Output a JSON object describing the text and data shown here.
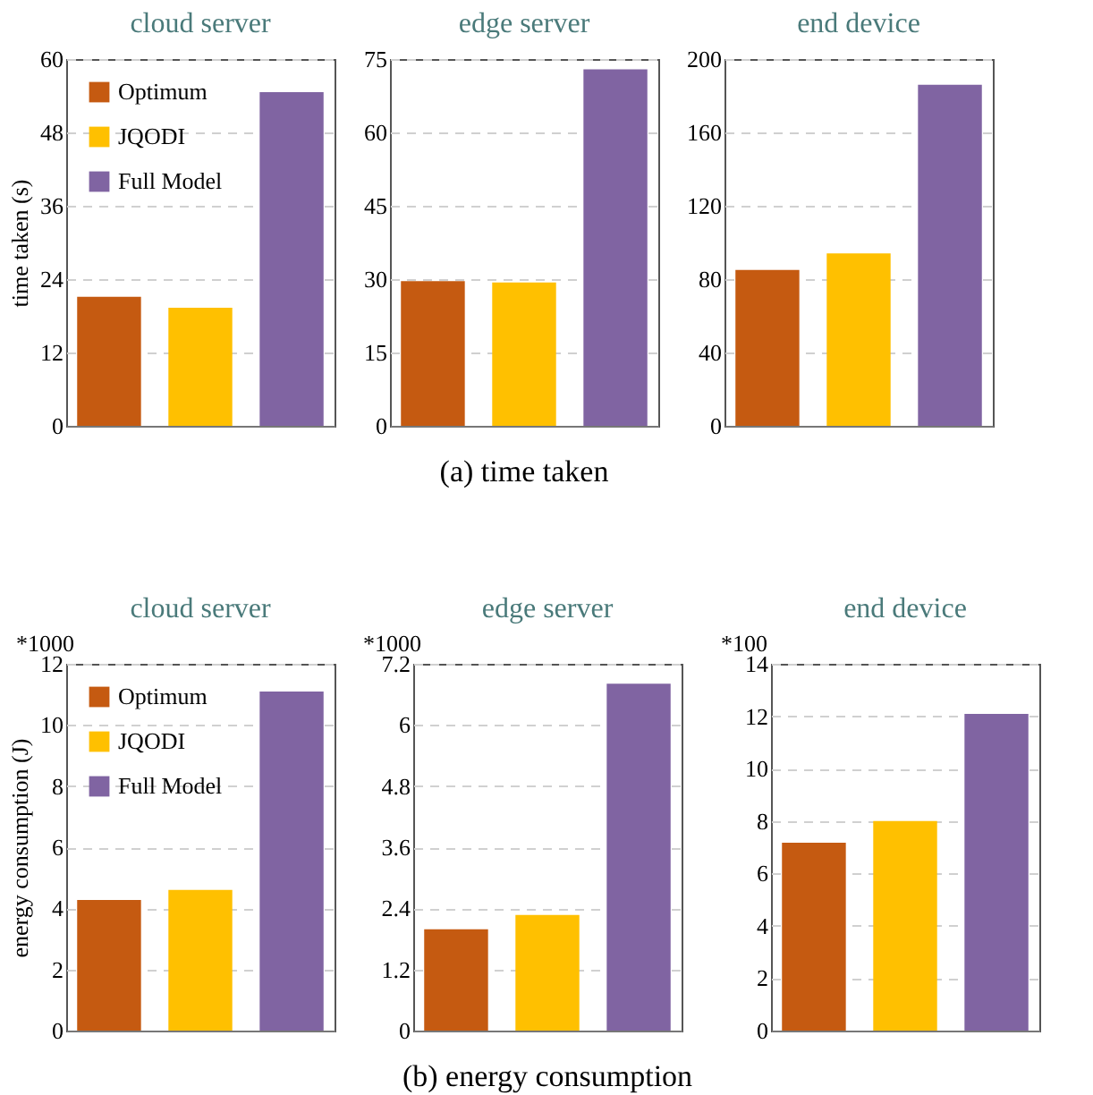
{
  "chart_data": [
    {
      "type": "bar",
      "title": "cloud server",
      "ylabel": "time taken (s)",
      "categories": [
        null
      ],
      "legend": "top left",
      "grid": "y",
      "ylim": [
        0,
        60
      ],
      "yticks": [
        0,
        12,
        24,
        36,
        48,
        60
      ],
      "series": [
        {
          "name": "Optimum",
          "color": "#c55a11",
          "values": [
            21.1
          ]
        },
        {
          "name": "JQODI",
          "color": "#ffc000",
          "values": [
            19.3
          ]
        },
        {
          "name": "Full Model",
          "color": "#8064a2",
          "values": [
            54.6
          ]
        }
      ]
    },
    {
      "type": "bar",
      "title": "edge server",
      "categories": [
        null
      ],
      "grid": "y",
      "ylim": [
        0,
        75
      ],
      "yticks": [
        0,
        15,
        30,
        45,
        60,
        75
      ],
      "annotations": [
        "(a) time taken"
      ],
      "series": [
        {
          "color": "#c55a11",
          "values": [
            29.6
          ]
        },
        {
          "color": "#ffc000",
          "values": [
            29.3
          ]
        },
        {
          "color": "#8064a2",
          "values": [
            72.9
          ]
        }
      ]
    },
    {
      "type": "bar",
      "title": "end device",
      "categories": [
        null
      ],
      "grid": "y",
      "ylim": [
        0,
        200
      ],
      "yticks": [
        0,
        40,
        80,
        120,
        160,
        200
      ],
      "series": [
        {
          "color": "#c55a11",
          "values": [
            85
          ]
        },
        {
          "color": "#ffc000",
          "values": [
            94
          ]
        },
        {
          "color": "#8064a2",
          "values": [
            186
          ]
        }
      ]
    },
    {
      "type": "bar",
      "title": "cloud server",
      "ylabel": "energy consumption (J)",
      "categories": [
        null
      ],
      "legend": "top left",
      "grid": "y",
      "ylim": [
        0,
        12
      ],
      "yticks": [
        0,
        2,
        4,
        6,
        8,
        10,
        12
      ],
      "annotations": [
        "*1000"
      ],
      "series": [
        {
          "name": "Optimum",
          "color": "#c55a11",
          "values": [
            4.27
          ]
        },
        {
          "name": "JQODI",
          "color": "#ffc000",
          "values": [
            4.6
          ]
        },
        {
          "name": "Full Model",
          "color": "#8064a2",
          "values": [
            11.09
          ]
        }
      ]
    },
    {
      "type": "bar",
      "title": "edge server",
      "categories": [
        null
      ],
      "grid": "y",
      "ylim": [
        0,
        7.2
      ],
      "yticks": [
        0,
        1.2,
        2.4,
        3.6,
        4.8,
        6,
        7.2
      ],
      "annotations": [
        "*1000",
        "(b) energy consumption"
      ],
      "series": [
        {
          "color": "#c55a11",
          "values": [
            1.99
          ]
        },
        {
          "color": "#ffc000",
          "values": [
            2.27
          ]
        },
        {
          "color": "#8064a2",
          "values": [
            6.81
          ]
        }
      ]
    },
    {
      "type": "bar",
      "title": "end device",
      "categories": [
        null
      ],
      "grid": "y",
      "ylim": [
        0,
        14
      ],
      "yticks": [
        0,
        2,
        4,
        6,
        8,
        10,
        12,
        14
      ],
      "annotations": [
        "*100"
      ],
      "series": [
        {
          "color": "#c55a11",
          "values": [
            7.17
          ]
        },
        {
          "color": "#ffc000",
          "values": [
            8.0
          ]
        },
        {
          "color": "#8064a2",
          "values": [
            12.09
          ]
        }
      ]
    }
  ]
}
